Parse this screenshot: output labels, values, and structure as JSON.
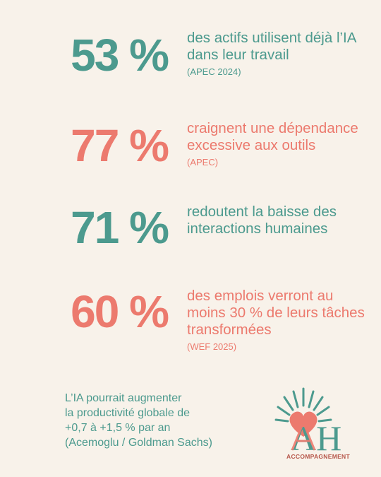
{
  "stats": [
    {
      "value": "53 %",
      "text": "des actifs utilisent déjà l’IA dans leur travail",
      "source": "(APEC 2024)"
    },
    {
      "value": "77 %",
      "text": "craignent une dépendance excessive aux outils",
      "source": "(APEC)"
    },
    {
      "value": "71 %",
      "text": "redoutent la baisse des interactions humaines",
      "source": ""
    },
    {
      "value": "60 %",
      "text": "des emplois verront au moins 30 % de leurs tâches transformées",
      "source": "(WEF 2025)"
    }
  ],
  "footer": {
    "line1": "L’IA pourrait augmenter",
    "line2": "la productivité globale de",
    "line3": "+0,7 à +1,5 % par an",
    "line4": "(Acemoglu / Goldman Sachs)"
  },
  "logo": {
    "letters": "AH",
    "caption": "ACCOMPAGNEMENT"
  },
  "colors": {
    "background": "#f8f2ea",
    "teal": "#4c9a8e",
    "coral": "#ec7a6e"
  }
}
